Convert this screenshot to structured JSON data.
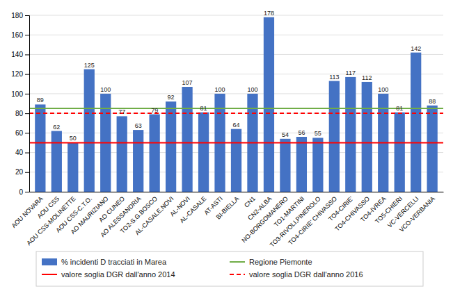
{
  "chart_data": {
    "type": "bar",
    "categories": [
      "AOU NOVARA",
      "AOU CSS",
      "AOU CSS-MOLINETTE",
      "AOU CSS-C.T.O.",
      "AO MAURIZIANO",
      "AO CUNEO",
      "AO ALESSANDRIA",
      "TO2-S.G.BOSCO",
      "AL-CASALE,NOVI",
      "AL-NOVI",
      "AL-CASALE",
      "AT-ASTI",
      "BI-BIELLA",
      "CN1",
      "CN2-ALBA",
      "NO-BORGOMANERO",
      "TO1-MARTINI",
      "TO3-RIVOLI,PINEROLO",
      "TO4-CIRIE' CHIVASSO",
      "TO4-CIRIE'",
      "TO4-CHIVASSO",
      "TO4-IVREA",
      "TO5-CHIERI",
      "VC-VERCELLI",
      "VCO-VERBANIA"
    ],
    "series": [
      {
        "name": "% incidenti D tracciati in Marea",
        "type": "bar",
        "color": "#4472C4",
        "values": [
          89,
          62,
          50,
          125,
          100,
          77,
          63,
          79,
          92,
          107,
          81,
          100,
          64,
          100,
          178,
          54,
          56,
          55,
          113,
          117,
          112,
          100,
          81,
          142,
          88
        ]
      }
    ],
    "reference_lines": [
      {
        "name": "Regione Piemonte",
        "value": 85,
        "color": "#70AD47",
        "line_style": "solid"
      },
      {
        "name": "valore soglia DGR dall'anno 2014",
        "value": 50,
        "color": "#FF0000",
        "line_style": "solid"
      },
      {
        "name": "valore soglia DGR dall'anno 2016",
        "value": 80,
        "color": "#FF0000",
        "line_style": "dashed"
      }
    ],
    "ylim": [
      0,
      180
    ],
    "yticks": [
      0,
      20,
      40,
      60,
      80,
      100,
      120,
      140,
      160,
      180
    ],
    "grid": true,
    "data_labels": true,
    "legend": "bottom"
  }
}
